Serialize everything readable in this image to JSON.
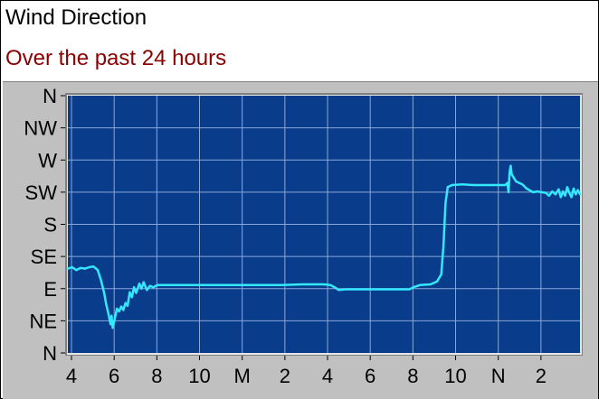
{
  "header": {
    "title": "Wind Direction",
    "subtitle": "Over the past 24 hours"
  },
  "colors": {
    "plot_bg": "#0a3c8c",
    "grid": "#8aa8d8",
    "line": "#33e8ff",
    "panel": "#c0c0c0",
    "subtitle": "#8b0000"
  },
  "chart_data": {
    "type": "line",
    "title": "Wind Direction",
    "subtitle": "Over the past 24 hours",
    "xlabel": "",
    "ylabel": "",
    "x_unit": "hours of elapsed time",
    "xlim": [
      0,
      24
    ],
    "ylim": [
      0,
      360
    ],
    "grid": true,
    "x_ticks": [
      {
        "x": 0.17,
        "label": "4"
      },
      {
        "x": 2.17,
        "label": "6"
      },
      {
        "x": 4.17,
        "label": "8"
      },
      {
        "x": 6.17,
        "label": "10"
      },
      {
        "x": 8.17,
        "label": "M"
      },
      {
        "x": 10.17,
        "label": "2"
      },
      {
        "x": 12.17,
        "label": "4"
      },
      {
        "x": 14.17,
        "label": "6"
      },
      {
        "x": 16.17,
        "label": "8"
      },
      {
        "x": 18.17,
        "label": "10"
      },
      {
        "x": 20.17,
        "label": "N"
      },
      {
        "x": 22.17,
        "label": "2"
      }
    ],
    "y_ticks": [
      {
        "y": 0,
        "label": "N"
      },
      {
        "y": 45,
        "label": "NE"
      },
      {
        "y": 90,
        "label": "E"
      },
      {
        "y": 135,
        "label": "SE"
      },
      {
        "y": 180,
        "label": "S"
      },
      {
        "y": 225,
        "label": "SW"
      },
      {
        "y": 270,
        "label": "W"
      },
      {
        "y": 315,
        "label": "NW"
      },
      {
        "y": 360,
        "label": "N"
      }
    ],
    "series": [
      {
        "values": [
          [
            0.0,
            118
          ],
          [
            0.2,
            120
          ],
          [
            0.4,
            116
          ],
          [
            0.6,
            119
          ],
          [
            0.8,
            118
          ],
          [
            1.0,
            120
          ],
          [
            1.2,
            121
          ],
          [
            1.4,
            116
          ],
          [
            1.55,
            102
          ],
          [
            1.7,
            84
          ],
          [
            1.8,
            68
          ],
          [
            1.9,
            55
          ],
          [
            2.0,
            40
          ],
          [
            2.05,
            52
          ],
          [
            2.1,
            35
          ],
          [
            2.2,
            48
          ],
          [
            2.3,
            62
          ],
          [
            2.4,
            58
          ],
          [
            2.5,
            65
          ],
          [
            2.6,
            60
          ],
          [
            2.7,
            70
          ],
          [
            2.8,
            66
          ],
          [
            2.9,
            85
          ],
          [
            3.0,
            78
          ],
          [
            3.1,
            92
          ],
          [
            3.2,
            84
          ],
          [
            3.35,
            97
          ],
          [
            3.45,
            90
          ],
          [
            3.55,
            99
          ],
          [
            3.7,
            88
          ],
          [
            3.85,
            94
          ],
          [
            4.0,
            92
          ],
          [
            4.2,
            95
          ],
          [
            5.0,
            95
          ],
          [
            6.0,
            95
          ],
          [
            7.0,
            95
          ],
          [
            8.0,
            95
          ],
          [
            9.0,
            95
          ],
          [
            10.0,
            95
          ],
          [
            11.0,
            96
          ],
          [
            12.0,
            96
          ],
          [
            12.3,
            95
          ],
          [
            12.5,
            92
          ],
          [
            12.7,
            88
          ],
          [
            13.0,
            89
          ],
          [
            14.0,
            89
          ],
          [
            15.0,
            89
          ],
          [
            16.0,
            89
          ],
          [
            16.2,
            92
          ],
          [
            16.5,
            95
          ],
          [
            17.0,
            96
          ],
          [
            17.3,
            100
          ],
          [
            17.5,
            110
          ],
          [
            17.6,
            150
          ],
          [
            17.7,
            210
          ],
          [
            17.8,
            232
          ],
          [
            18.0,
            235
          ],
          [
            18.5,
            236
          ],
          [
            19.0,
            235
          ],
          [
            20.0,
            235
          ],
          [
            20.5,
            235
          ],
          [
            20.6,
            238
          ],
          [
            20.65,
            225
          ],
          [
            20.7,
            253
          ],
          [
            20.75,
            262
          ],
          [
            20.8,
            250
          ],
          [
            21.0,
            240
          ],
          [
            21.3,
            236
          ],
          [
            21.5,
            230
          ],
          [
            21.8,
            225
          ],
          [
            22.0,
            226
          ],
          [
            22.2,
            225
          ],
          [
            22.4,
            224
          ],
          [
            22.55,
            220
          ],
          [
            22.7,
            226
          ],
          [
            22.85,
            222
          ],
          [
            23.0,
            229
          ],
          [
            23.1,
            218
          ],
          [
            23.2,
            226
          ],
          [
            23.3,
            220
          ],
          [
            23.4,
            232
          ],
          [
            23.5,
            224
          ],
          [
            23.6,
            218
          ],
          [
            23.7,
            230
          ],
          [
            23.8,
            222
          ],
          [
            23.9,
            228
          ],
          [
            24.0,
            222
          ]
        ]
      }
    ]
  }
}
